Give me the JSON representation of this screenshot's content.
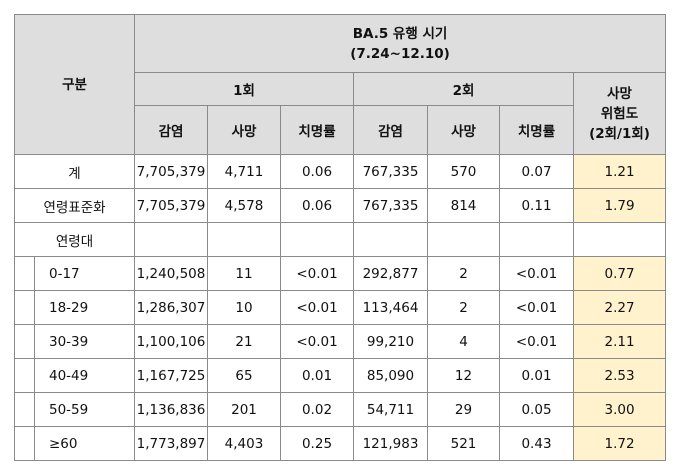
{
  "header": {
    "category": "구분",
    "period_title": "BA.5 유행 시기",
    "period_range": "(7.24~12.10)",
    "round1": "1회",
    "round2": "2회",
    "risk_title_line1": "사망",
    "risk_title_line2": "위험도",
    "risk_title_line3": "(2회/1회)",
    "col_infection": "감염",
    "col_death": "사망",
    "col_fatality": "치명률"
  },
  "rows": [
    {
      "label": "계",
      "r1_inf": "7,705,379",
      "r1_death": "4,711",
      "r1_cfr": "0.06",
      "r2_inf": "767,335",
      "r2_death": "570",
      "r2_cfr": "0.07",
      "risk": "1.21"
    },
    {
      "label": "연령표준화",
      "r1_inf": "7,705,379",
      "r1_death": "4,578",
      "r1_cfr": "0.06",
      "r2_inf": "767,335",
      "r2_death": "814",
      "r2_cfr": "0.11",
      "risk": "1.79"
    }
  ],
  "age_group_label": "연령대",
  "age_rows": [
    {
      "label": "0-17",
      "r1_inf": "1,240,508",
      "r1_death": "11",
      "r1_cfr": "<0.01",
      "r2_inf": "292,877",
      "r2_death": "2",
      "r2_cfr": "<0.01",
      "risk": "0.77"
    },
    {
      "label": "18-29",
      "r1_inf": "1,286,307",
      "r1_death": "10",
      "r1_cfr": "<0.01",
      "r2_inf": "113,464",
      "r2_death": "2",
      "r2_cfr": "<0.01",
      "risk": "2.27"
    },
    {
      "label": "30-39",
      "r1_inf": "1,100,106",
      "r1_death": "21",
      "r1_cfr": "<0.01",
      "r2_inf": "99,210",
      "r2_death": "4",
      "r2_cfr": "<0.01",
      "risk": "2.11"
    },
    {
      "label": "40-49",
      "r1_inf": "1,167,725",
      "r1_death": "65",
      "r1_cfr": "0.01",
      "r2_inf": "85,090",
      "r2_death": "12",
      "r2_cfr": "0.01",
      "risk": "2.53"
    },
    {
      "label": "50-59",
      "r1_inf": "1,136,836",
      "r1_death": "201",
      "r1_cfr": "0.02",
      "r2_inf": "54,711",
      "r2_death": "29",
      "r2_cfr": "0.05",
      "risk": "3.00"
    },
    {
      "label": "≥60",
      "r1_inf": "1,773,897",
      "r1_death": "4,403",
      "r1_cfr": "0.25",
      "r2_inf": "121,983",
      "r2_death": "521",
      "r2_cfr": "0.43",
      "risk": "1.72"
    }
  ],
  "colors": {
    "header_bg": "#dedede",
    "risk_bg": "#fff2cc",
    "border": "#8a8a8a"
  }
}
